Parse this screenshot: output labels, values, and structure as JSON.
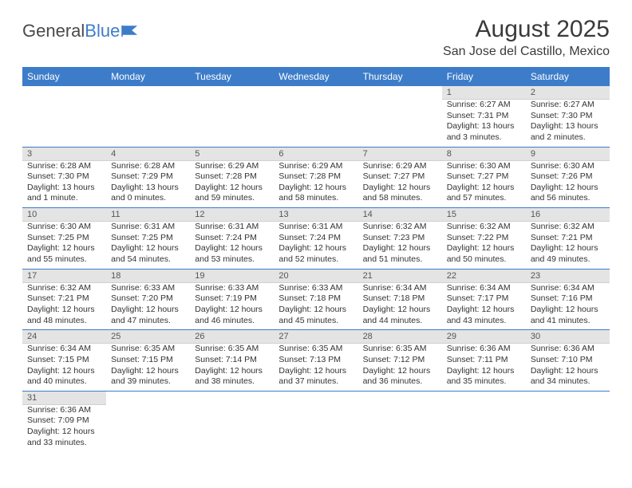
{
  "logo": {
    "part1": "General",
    "part2": "Blue"
  },
  "title": "August 2025",
  "location": "San Jose del Castillo, Mexico",
  "colors": {
    "header_bg": "#3d7cc9",
    "header_text": "#ffffff",
    "daynum_bg": "#e4e4e4",
    "week_sep": "#3d7cc9",
    "body_text": "#333333",
    "page_bg": "#ffffff"
  },
  "weekdays": [
    "Sunday",
    "Monday",
    "Tuesday",
    "Wednesday",
    "Thursday",
    "Friday",
    "Saturday"
  ],
  "weeks": [
    [
      null,
      null,
      null,
      null,
      null,
      {
        "n": "1",
        "sr": "Sunrise: 6:27 AM",
        "ss": "Sunset: 7:31 PM",
        "d1": "Daylight: 13 hours",
        "d2": "and 3 minutes."
      },
      {
        "n": "2",
        "sr": "Sunrise: 6:27 AM",
        "ss": "Sunset: 7:30 PM",
        "d1": "Daylight: 13 hours",
        "d2": "and 2 minutes."
      }
    ],
    [
      {
        "n": "3",
        "sr": "Sunrise: 6:28 AM",
        "ss": "Sunset: 7:30 PM",
        "d1": "Daylight: 13 hours",
        "d2": "and 1 minute."
      },
      {
        "n": "4",
        "sr": "Sunrise: 6:28 AM",
        "ss": "Sunset: 7:29 PM",
        "d1": "Daylight: 13 hours",
        "d2": "and 0 minutes."
      },
      {
        "n": "5",
        "sr": "Sunrise: 6:29 AM",
        "ss": "Sunset: 7:28 PM",
        "d1": "Daylight: 12 hours",
        "d2": "and 59 minutes."
      },
      {
        "n": "6",
        "sr": "Sunrise: 6:29 AM",
        "ss": "Sunset: 7:28 PM",
        "d1": "Daylight: 12 hours",
        "d2": "and 58 minutes."
      },
      {
        "n": "7",
        "sr": "Sunrise: 6:29 AM",
        "ss": "Sunset: 7:27 PM",
        "d1": "Daylight: 12 hours",
        "d2": "and 58 minutes."
      },
      {
        "n": "8",
        "sr": "Sunrise: 6:30 AM",
        "ss": "Sunset: 7:27 PM",
        "d1": "Daylight: 12 hours",
        "d2": "and 57 minutes."
      },
      {
        "n": "9",
        "sr": "Sunrise: 6:30 AM",
        "ss": "Sunset: 7:26 PM",
        "d1": "Daylight: 12 hours",
        "d2": "and 56 minutes."
      }
    ],
    [
      {
        "n": "10",
        "sr": "Sunrise: 6:30 AM",
        "ss": "Sunset: 7:25 PM",
        "d1": "Daylight: 12 hours",
        "d2": "and 55 minutes."
      },
      {
        "n": "11",
        "sr": "Sunrise: 6:31 AM",
        "ss": "Sunset: 7:25 PM",
        "d1": "Daylight: 12 hours",
        "d2": "and 54 minutes."
      },
      {
        "n": "12",
        "sr": "Sunrise: 6:31 AM",
        "ss": "Sunset: 7:24 PM",
        "d1": "Daylight: 12 hours",
        "d2": "and 53 minutes."
      },
      {
        "n": "13",
        "sr": "Sunrise: 6:31 AM",
        "ss": "Sunset: 7:24 PM",
        "d1": "Daylight: 12 hours",
        "d2": "and 52 minutes."
      },
      {
        "n": "14",
        "sr": "Sunrise: 6:32 AM",
        "ss": "Sunset: 7:23 PM",
        "d1": "Daylight: 12 hours",
        "d2": "and 51 minutes."
      },
      {
        "n": "15",
        "sr": "Sunrise: 6:32 AM",
        "ss": "Sunset: 7:22 PM",
        "d1": "Daylight: 12 hours",
        "d2": "and 50 minutes."
      },
      {
        "n": "16",
        "sr": "Sunrise: 6:32 AM",
        "ss": "Sunset: 7:21 PM",
        "d1": "Daylight: 12 hours",
        "d2": "and 49 minutes."
      }
    ],
    [
      {
        "n": "17",
        "sr": "Sunrise: 6:32 AM",
        "ss": "Sunset: 7:21 PM",
        "d1": "Daylight: 12 hours",
        "d2": "and 48 minutes."
      },
      {
        "n": "18",
        "sr": "Sunrise: 6:33 AM",
        "ss": "Sunset: 7:20 PM",
        "d1": "Daylight: 12 hours",
        "d2": "and 47 minutes."
      },
      {
        "n": "19",
        "sr": "Sunrise: 6:33 AM",
        "ss": "Sunset: 7:19 PM",
        "d1": "Daylight: 12 hours",
        "d2": "and 46 minutes."
      },
      {
        "n": "20",
        "sr": "Sunrise: 6:33 AM",
        "ss": "Sunset: 7:18 PM",
        "d1": "Daylight: 12 hours",
        "d2": "and 45 minutes."
      },
      {
        "n": "21",
        "sr": "Sunrise: 6:34 AM",
        "ss": "Sunset: 7:18 PM",
        "d1": "Daylight: 12 hours",
        "d2": "and 44 minutes."
      },
      {
        "n": "22",
        "sr": "Sunrise: 6:34 AM",
        "ss": "Sunset: 7:17 PM",
        "d1": "Daylight: 12 hours",
        "d2": "and 43 minutes."
      },
      {
        "n": "23",
        "sr": "Sunrise: 6:34 AM",
        "ss": "Sunset: 7:16 PM",
        "d1": "Daylight: 12 hours",
        "d2": "and 41 minutes."
      }
    ],
    [
      {
        "n": "24",
        "sr": "Sunrise: 6:34 AM",
        "ss": "Sunset: 7:15 PM",
        "d1": "Daylight: 12 hours",
        "d2": "and 40 minutes."
      },
      {
        "n": "25",
        "sr": "Sunrise: 6:35 AM",
        "ss": "Sunset: 7:15 PM",
        "d1": "Daylight: 12 hours",
        "d2": "and 39 minutes."
      },
      {
        "n": "26",
        "sr": "Sunrise: 6:35 AM",
        "ss": "Sunset: 7:14 PM",
        "d1": "Daylight: 12 hours",
        "d2": "and 38 minutes."
      },
      {
        "n": "27",
        "sr": "Sunrise: 6:35 AM",
        "ss": "Sunset: 7:13 PM",
        "d1": "Daylight: 12 hours",
        "d2": "and 37 minutes."
      },
      {
        "n": "28",
        "sr": "Sunrise: 6:35 AM",
        "ss": "Sunset: 7:12 PM",
        "d1": "Daylight: 12 hours",
        "d2": "and 36 minutes."
      },
      {
        "n": "29",
        "sr": "Sunrise: 6:36 AM",
        "ss": "Sunset: 7:11 PM",
        "d1": "Daylight: 12 hours",
        "d2": "and 35 minutes."
      },
      {
        "n": "30",
        "sr": "Sunrise: 6:36 AM",
        "ss": "Sunset: 7:10 PM",
        "d1": "Daylight: 12 hours",
        "d2": "and 34 minutes."
      }
    ],
    [
      {
        "n": "31",
        "sr": "Sunrise: 6:36 AM",
        "ss": "Sunset: 7:09 PM",
        "d1": "Daylight: 12 hours",
        "d2": "and 33 minutes."
      },
      null,
      null,
      null,
      null,
      null,
      null
    ]
  ]
}
